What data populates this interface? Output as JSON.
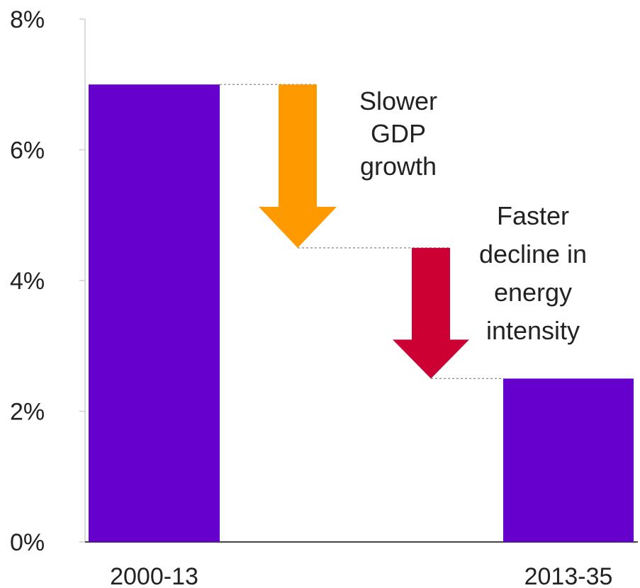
{
  "chart_data": {
    "type": "bar",
    "categories": [
      "2000-13",
      "2013-35"
    ],
    "values": [
      7.0,
      2.5
    ],
    "ylim": [
      0,
      8
    ],
    "yticks": [
      0,
      2,
      4,
      6,
      8
    ],
    "ytick_labels": [
      "0%",
      "2%",
      "4%",
      "6%",
      "8%"
    ],
    "grid": false,
    "bar_color": "#6600cc",
    "steps": [
      {
        "name": "gdp",
        "from": 7.0,
        "to": 4.5,
        "color": "#ff9900",
        "label_lines": [
          "Slower",
          "GDP",
          "growth"
        ]
      },
      {
        "name": "energy-intensity",
        "from": 4.5,
        "to": 2.5,
        "color": "#cc0033",
        "label_lines": [
          "Faster",
          "decline in",
          "energy",
          "intensity"
        ]
      }
    ]
  }
}
